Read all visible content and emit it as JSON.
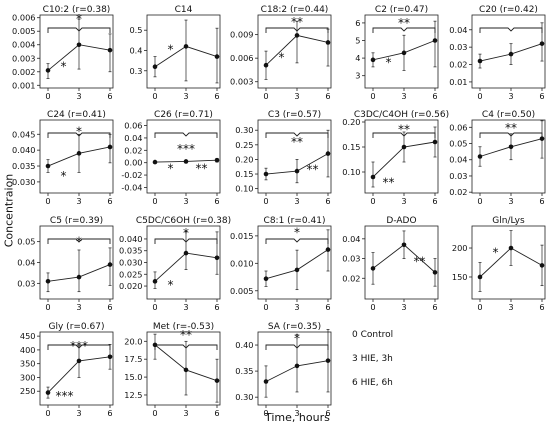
{
  "figure": {
    "ylabel": "Concentraion",
    "xlabel": "Time, hours",
    "legend": [
      {
        "code": "0",
        "label": "Control"
      },
      {
        "code": "3",
        "label": "HIE, 3h"
      },
      {
        "code": "6",
        "label": "HIE, 6h"
      }
    ]
  },
  "chart_data": [
    {
      "type": "line",
      "title": "C10:2 (r=0.38)",
      "x": [
        0,
        3,
        6
      ],
      "values": [
        0.0021,
        0.004,
        0.0036
      ],
      "err": [
        [
          0.0015,
          0.0026
        ],
        [
          0.0022,
          0.0059
        ],
        [
          0.002,
          0.0048
        ]
      ],
      "ylim": [
        0.0008,
        0.0062
      ],
      "yticks": [
        "0.001",
        "0.002",
        "0.003",
        "0.004",
        "0.005",
        "0.006"
      ],
      "ytick_values": [
        0.001,
        0.002,
        0.003,
        0.004,
        0.005,
        0.006
      ],
      "xticks": [
        "0",
        "3",
        "6"
      ],
      "bracket": true,
      "annotations": [
        {
          "text": "*",
          "x": 3,
          "y": 0.0059
        },
        {
          "text": "*",
          "x": 1.5,
          "y": 0.0024
        }
      ]
    },
    {
      "type": "line",
      "title": "C14",
      "x": [
        0,
        3,
        6
      ],
      "values": [
        0.32,
        0.42,
        0.37
      ],
      "err": [
        [
          0.27,
          0.37
        ],
        [
          0.25,
          0.55
        ],
        [
          0.24,
          0.51
        ]
      ],
      "ylim": [
        0.215,
        0.575
      ],
      "yticks": [
        "0.3",
        "0.4",
        "0.5"
      ],
      "ytick_values": [
        0.3,
        0.4,
        0.5
      ],
      "xticks": [
        "0",
        "3",
        "6"
      ],
      "bracket": false,
      "annotations": [
        {
          "text": "*",
          "x": 1.5,
          "y": 0.405
        }
      ]
    },
    {
      "type": "line",
      "title": "C18:2 (r=0.44)",
      "x": [
        0,
        3,
        6
      ],
      "values": [
        0.0051,
        0.0089,
        0.008
      ],
      "err": [
        [
          0.0033,
          0.0069
        ],
        [
          0.0054,
          0.0107
        ],
        [
          0.005,
          0.0097
        ]
      ],
      "ylim": [
        0.0022,
        0.0115
      ],
      "yticks": [
        "0.003",
        "0.006",
        "0.009"
      ],
      "ytick_values": [
        0.003,
        0.006,
        0.009
      ],
      "xticks": [
        "0",
        "3",
        "6"
      ],
      "bracket": true,
      "annotations": [
        {
          "text": "**",
          "x": 3,
          "y": 0.0106
        },
        {
          "text": "*",
          "x": 1.5,
          "y": 0.0061
        }
      ]
    },
    {
      "type": "line",
      "title": "C2 (r=0.47)",
      "x": [
        0,
        3,
        6
      ],
      "values": [
        3.9,
        4.3,
        5.0
      ],
      "err": [
        [
          3.5,
          4.3
        ],
        [
          3.3,
          5.3
        ],
        [
          3.5,
          6.1
        ]
      ],
      "ylim": [
        2.3,
        6.45
      ],
      "yticks": [
        "3",
        "4",
        "5",
        "6"
      ],
      "ytick_values": [
        3,
        4,
        5,
        6
      ],
      "xticks": [
        "0",
        "3",
        "6"
      ],
      "bracket": true,
      "annotations": [
        {
          "text": "**",
          "x": 3,
          "y": 6.0
        },
        {
          "text": "*",
          "x": 1.5,
          "y": 3.75
        }
      ]
    },
    {
      "type": "line",
      "title": "C20 (r=0.42)",
      "x": [
        0,
        3,
        6
      ],
      "values": [
        0.022,
        0.026,
        0.032
      ],
      "err": [
        [
          0.018,
          0.026
        ],
        [
          0.02,
          0.032
        ],
        [
          0.022,
          0.044
        ]
      ],
      "ylim": [
        0.0065,
        0.0485
      ],
      "yticks": [
        "0.01",
        "0.02",
        "0.03",
        "0.04"
      ],
      "ytick_values": [
        0.01,
        0.02,
        0.03,
        0.04
      ],
      "xticks": [
        "0",
        "3",
        "6"
      ],
      "bracket": true,
      "annotations": []
    },
    {
      "type": "line",
      "title": "C24 (r=0.41)",
      "x": [
        0,
        3,
        6
      ],
      "values": [
        0.035,
        0.039,
        0.041
      ],
      "err": [
        [
          0.033,
          0.037
        ],
        [
          0.033,
          0.045
        ],
        [
          0.036,
          0.045
        ]
      ],
      "ylim": [
        0.0265,
        0.0495
      ],
      "yticks": [
        "0.030",
        "0.035",
        "0.040",
        "0.045"
      ],
      "ytick_values": [
        0.03,
        0.035,
        0.04,
        0.045
      ],
      "xticks": [
        "0",
        "3",
        "6"
      ],
      "bracket": true,
      "annotations": [
        {
          "text": "*",
          "x": 3,
          "y": 0.0458
        },
        {
          "text": "*",
          "x": 1.5,
          "y": 0.0318
        }
      ]
    },
    {
      "type": "line",
      "title": "C26 (r=0.71)",
      "x": [
        0,
        3,
        6
      ],
      "values": [
        0.001,
        0.002,
        0.004
      ],
      "err": [
        [
          0.0,
          0.002
        ],
        [
          0.0,
          0.004
        ],
        [
          0.001,
          0.007
        ]
      ],
      "ylim": [
        -0.049,
        0.069
      ],
      "yticks": [
        "-0.04",
        "-0.02",
        "0.00",
        "0.02",
        "0.04",
        "0.06"
      ],
      "ytick_values": [
        -0.04,
        -0.02,
        0.0,
        0.02,
        0.04,
        0.06
      ],
      "xticks": [
        "0",
        "3",
        "6"
      ],
      "bracket": true,
      "annotations": [
        {
          "text": "***",
          "x": 3,
          "y": 0.022
        },
        {
          "text": "*",
          "x": 1.5,
          "y": -0.009
        },
        {
          "text": "**",
          "x": 4.5,
          "y": -0.009
        }
      ]
    },
    {
      "type": "line",
      "title": "C3 (r=0.57)",
      "x": [
        0,
        3,
        6
      ],
      "values": [
        0.15,
        0.16,
        0.22
      ],
      "err": [
        [
          0.13,
          0.17
        ],
        [
          0.12,
          0.2
        ],
        [
          0.14,
          0.3
        ]
      ],
      "ylim": [
        0.085,
        0.335
      ],
      "yticks": [
        "0.10",
        "0.15",
        "0.20",
        "0.25",
        "0.30"
      ],
      "ytick_values": [
        0.1,
        0.15,
        0.2,
        0.25,
        0.3
      ],
      "xticks": [
        "0",
        "3",
        "6"
      ],
      "bracket": true,
      "annotations": [
        {
          "text": "**",
          "x": 3,
          "y": 0.26
        },
        {
          "text": "**",
          "x": 4.5,
          "y": 0.165
        }
      ]
    },
    {
      "type": "line",
      "title": "C3DC/C4OH (r=0.56)",
      "x": [
        0,
        3,
        6
      ],
      "values": [
        0.09,
        0.15,
        0.16
      ],
      "err": [
        [
          0.07,
          0.12
        ],
        [
          0.12,
          0.18
        ],
        [
          0.13,
          0.19
        ]
      ],
      "ylim": [
        0.058,
        0.204
      ],
      "yticks": [
        "0.10",
        "0.15",
        "0.20"
      ],
      "ytick_values": [
        0.1,
        0.15,
        0.2
      ],
      "xticks": [
        "0",
        "3",
        "6"
      ],
      "bracket": true,
      "annotations": [
        {
          "text": "**",
          "x": 3,
          "y": 0.185
        },
        {
          "text": "**",
          "x": 1.5,
          "y": 0.079
        }
      ]
    },
    {
      "type": "line",
      "title": "C4 (r=0.50)",
      "x": [
        0,
        3,
        6
      ],
      "values": [
        0.042,
        0.048,
        0.053
      ],
      "err": [
        [
          0.036,
          0.048
        ],
        [
          0.04,
          0.056
        ],
        [
          0.041,
          0.064
        ]
      ],
      "ylim": [
        0.0195,
        0.0645
      ],
      "yticks": [
        "0.02",
        "0.03",
        "0.04",
        "0.05",
        "0.06"
      ],
      "ytick_values": [
        0.02,
        0.03,
        0.04,
        0.05,
        0.06
      ],
      "xticks": [
        "0",
        "3",
        "6"
      ],
      "bracket": true,
      "annotations": [
        {
          "text": "**",
          "x": 3,
          "y": 0.0595
        }
      ]
    },
    {
      "type": "line",
      "title": "C5 (r=0.39)",
      "x": [
        0,
        3,
        6
      ],
      "values": [
        0.031,
        0.033,
        0.039
      ],
      "err": [
        [
          0.026,
          0.035
        ],
        [
          0.026,
          0.046
        ],
        [
          0.029,
          0.047
        ]
      ],
      "ylim": [
        0.0225,
        0.0575
      ],
      "yticks": [
        "0.03",
        "0.04",
        "0.05"
      ],
      "ytick_values": [
        0.03,
        0.04,
        0.05
      ],
      "xticks": [
        "0",
        "3",
        "6"
      ],
      "bracket": true,
      "annotations": [
        {
          "text": "*",
          "x": 3,
          "y": 0.05
        }
      ]
    },
    {
      "type": "line",
      "title": "C5DC/C6OH (r=0.38)",
      "x": [
        0,
        3,
        6
      ],
      "values": [
        0.022,
        0.034,
        0.032
      ],
      "err": [
        [
          0.019,
          0.026
        ],
        [
          0.027,
          0.043
        ],
        [
          0.025,
          0.043
        ]
      ],
      "ylim": [
        0.0145,
        0.0455
      ],
      "yticks": [
        "0.020",
        "0.025",
        "0.030",
        "0.035",
        "0.040"
      ],
      "ytick_values": [
        0.02,
        0.025,
        0.03,
        0.035,
        0.04
      ],
      "xticks": [
        "0",
        "3",
        "6"
      ],
      "bracket": true,
      "annotations": [
        {
          "text": "*",
          "x": 3,
          "y": 0.0425
        },
        {
          "text": "*",
          "x": 1.5,
          "y": 0.0205
        }
      ]
    },
    {
      "type": "line",
      "title": "C8:1 (r=0.41)",
      "x": [
        0,
        3,
        6
      ],
      "values": [
        0.0072,
        0.0088,
        0.0125
      ],
      "err": [
        [
          0.0058,
          0.0086
        ],
        [
          0.0052,
          0.0124
        ],
        [
          0.0086,
          0.0161
        ]
      ],
      "ylim": [
        0.0035,
        0.0168
      ],
      "yticks": [
        "0.005",
        "0.010",
        "0.015"
      ],
      "ytick_values": [
        0.005,
        0.01,
        0.015
      ],
      "xticks": [
        "0",
        "3",
        "6"
      ],
      "bracket": true,
      "annotations": [
        {
          "text": "*",
          "x": 3,
          "y": 0.0156
        }
      ]
    },
    {
      "type": "line",
      "title": "D-ADO",
      "x": [
        0,
        3,
        6
      ],
      "values": [
        0.025,
        0.037,
        0.023
      ],
      "err": [
        [
          0.017,
          0.033
        ],
        [
          0.03,
          0.044
        ],
        [
          0.016,
          0.03
        ]
      ],
      "ylim": [
        0.0095,
        0.0465
      ],
      "yticks": [
        "0.02",
        "0.03",
        "0.04"
      ],
      "ytick_values": [
        0.02,
        0.03,
        0.04
      ],
      "xticks": [
        "0",
        "3",
        "6"
      ],
      "bracket": false,
      "annotations": [
        {
          "text": "**",
          "x": 4.5,
          "y": 0.0285
        }
      ]
    },
    {
      "type": "line",
      "title": "Gln/Lys",
      "x": [
        0,
        3,
        6
      ],
      "values": [
        150,
        200,
        170
      ],
      "err": [
        [
          125,
          175
        ],
        [
          170,
          230
        ],
        [
          135,
          205
        ]
      ],
      "ylim": [
        112,
        238
      ],
      "yticks": [
        "150",
        "200"
      ],
      "ytick_values": [
        150,
        200
      ],
      "xticks": [
        "0",
        "3",
        "6"
      ],
      "bracket": false,
      "annotations": [
        {
          "text": "*",
          "x": 1.5,
          "y": 192
        }
      ]
    },
    {
      "type": "line",
      "title": "Gly (r=0.67)",
      "x": [
        0,
        3,
        6
      ],
      "values": [
        245,
        360,
        375
      ],
      "err": [
        [
          225,
          265
        ],
        [
          300,
          415
        ],
        [
          330,
          420
        ]
      ],
      "ylim": [
        200,
        465
      ],
      "yticks": [
        "250",
        "300",
        "350",
        "400",
        "450"
      ],
      "ytick_values": [
        250,
        300,
        350,
        400,
        450
      ],
      "xticks": [
        "0",
        "3",
        "6"
      ],
      "bracket": true,
      "annotations": [
        {
          "text": "***",
          "x": 3,
          "y": 415
        },
        {
          "text": "***",
          "x": 1.6,
          "y": 232
        }
      ]
    },
    {
      "type": "line",
      "title": "Met (r=-0.53)",
      "x": [
        0,
        3,
        6
      ],
      "values": [
        19.5,
        16.0,
        14.5
      ],
      "err": [
        [
          17.5,
          21.0
        ],
        [
          12.5,
          20.0
        ],
        [
          11.5,
          17.5
        ]
      ],
      "ylim": [
        11.1,
        21.3
      ],
      "yticks": [
        "12.5",
        "15.0",
        "17.5",
        "20.0"
      ],
      "ytick_values": [
        12.5,
        15.0,
        17.5,
        20.0
      ],
      "xticks": [
        "0",
        "3",
        "6"
      ],
      "bracket": true,
      "annotations": [
        {
          "text": "**",
          "x": 3,
          "y": 20.9
        }
      ]
    },
    {
      "type": "line",
      "title": "SA (r=0.35)",
      "x": [
        0,
        3,
        6
      ],
      "values": [
        0.33,
        0.36,
        0.37
      ],
      "err": [
        [
          0.3,
          0.36
        ],
        [
          0.31,
          0.42
        ],
        [
          0.31,
          0.43
        ]
      ],
      "ylim": [
        0.285,
        0.425
      ],
      "yticks": [
        "0.30",
        "0.35",
        "0.40"
      ],
      "ytick_values": [
        0.3,
        0.35,
        0.4
      ],
      "xticks": [
        "0",
        "3",
        "6"
      ],
      "bracket": true,
      "annotations": [
        {
          "text": "*",
          "x": 3,
          "y": 0.413
        }
      ]
    }
  ]
}
